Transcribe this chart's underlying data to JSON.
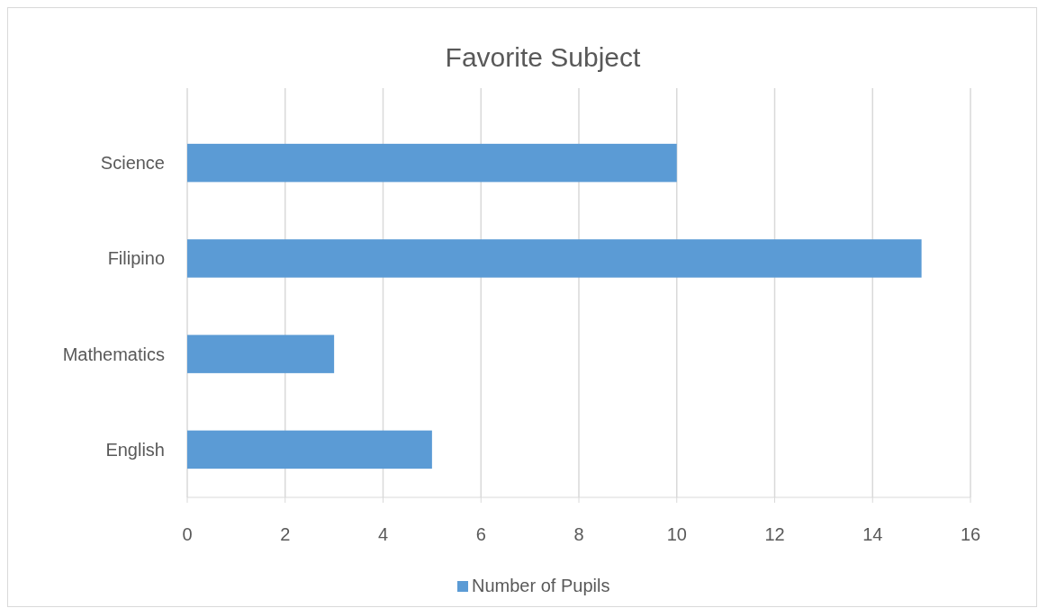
{
  "chart_data": {
    "type": "bar",
    "title": "Favorite Subject",
    "orientation": "horizontal",
    "categories": [
      "Science",
      "Filipino",
      "Mathematics",
      "English"
    ],
    "series": [
      {
        "name": "Number of Pupils",
        "color": "#5b9bd5",
        "values": [
          10,
          15,
          3,
          5
        ]
      }
    ],
    "xlim": [
      0,
      16
    ],
    "xticks": [
      0,
      2,
      4,
      6,
      8,
      10,
      12,
      14,
      16
    ],
    "grid": "x",
    "legend": "bottom"
  }
}
